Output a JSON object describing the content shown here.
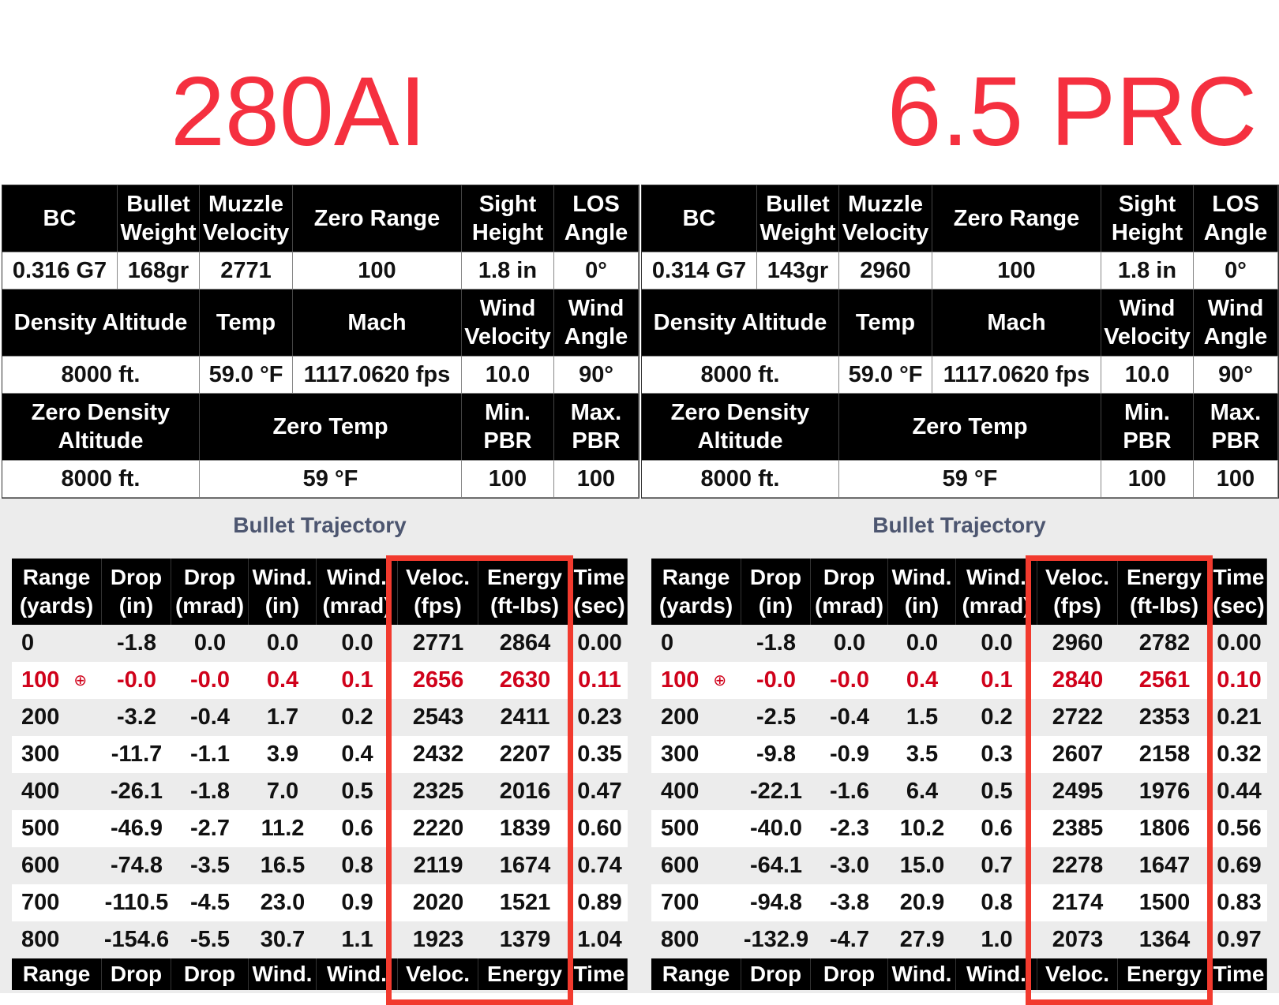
{
  "colors": {
    "title": "#f5303f",
    "highlight_box": "#f23a2e",
    "zero_row": "#d0021b"
  },
  "panels": [
    {
      "title": "280AI",
      "specs": {
        "row1_headers": [
          "BC",
          "Bullet Weight",
          "Muzzle Velocity",
          "Zero Range",
          "Sight Height",
          "LOS Angle"
        ],
        "row1_values": [
          "0.316 G7",
          "168gr",
          "2771",
          "100",
          "1.8 in",
          "0°"
        ],
        "row2_headers": [
          "Density Altitude",
          "Temp",
          "Mach",
          "Wind Velocity",
          "Wind Angle"
        ],
        "row2_values": [
          "8000 ft.",
          "59.0 °F",
          "1117.0620 fps",
          "10.0",
          "90°"
        ],
        "row3_headers": [
          "Zero Density Altitude",
          "Zero Temp",
          "Min. PBR",
          "Max. PBR"
        ],
        "row3_values": [
          "8000 ft.",
          "59 °F",
          "100",
          "100"
        ]
      },
      "trajectory_title": "Bullet Trajectory",
      "columns": [
        "Range (yards)",
        "Drop (in)",
        "Drop (mrad)",
        "Wind. (in)",
        "Wind. (mrad)",
        "Veloc. (fps)",
        "Energy (ft-lbs)",
        "Time (sec)"
      ],
      "footer_columns": [
        "Range",
        "Drop",
        "Drop",
        "Wind.",
        "Wind.",
        "Veloc.",
        "Energy",
        "Time"
      ],
      "zero_range": "100",
      "rows": [
        [
          "0",
          "-1.8",
          "0.0",
          "0.0",
          "0.0",
          "2771",
          "2864",
          "0.00"
        ],
        [
          "100",
          "-0.0",
          "-0.0",
          "0.4",
          "0.1",
          "2656",
          "2630",
          "0.11"
        ],
        [
          "200",
          "-3.2",
          "-0.4",
          "1.7",
          "0.2",
          "2543",
          "2411",
          "0.23"
        ],
        [
          "300",
          "-11.7",
          "-1.1",
          "3.9",
          "0.4",
          "2432",
          "2207",
          "0.35"
        ],
        [
          "400",
          "-26.1",
          "-1.8",
          "7.0",
          "0.5",
          "2325",
          "2016",
          "0.47"
        ],
        [
          "500",
          "-46.9",
          "-2.7",
          "11.2",
          "0.6",
          "2220",
          "1839",
          "0.60"
        ],
        [
          "600",
          "-74.8",
          "-3.5",
          "16.5",
          "0.8",
          "2119",
          "1674",
          "0.74"
        ],
        [
          "700",
          "-110.5",
          "-4.5",
          "23.0",
          "0.9",
          "2020",
          "1521",
          "0.89"
        ],
        [
          "800",
          "-154.6",
          "-5.5",
          "30.7",
          "1.1",
          "1923",
          "1379",
          "1.04"
        ]
      ]
    },
    {
      "title": "6.5 PRC",
      "specs": {
        "row1_headers": [
          "BC",
          "Bullet Weight",
          "Muzzle Velocity",
          "Zero Range",
          "Sight Height",
          "LOS Angle"
        ],
        "row1_values": [
          "0.314 G7",
          "143gr",
          "2960",
          "100",
          "1.8 in",
          "0°"
        ],
        "row2_headers": [
          "Density Altitude",
          "Temp",
          "Mach",
          "Wind Velocity",
          "Wind Angle"
        ],
        "row2_values": [
          "8000 ft.",
          "59.0 °F",
          "1117.0620 fps",
          "10.0",
          "90°"
        ],
        "row3_headers": [
          "Zero Density Altitude",
          "Zero Temp",
          "Min. PBR",
          "Max. PBR"
        ],
        "row3_values": [
          "8000 ft.",
          "59 °F",
          "100",
          "100"
        ]
      },
      "trajectory_title": "Bullet Trajectory",
      "columns": [
        "Range (yards)",
        "Drop (in)",
        "Drop (mrad)",
        "Wind. (in)",
        "Wind. (mrad)",
        "Veloc. (fps)",
        "Energy (ft-lbs)",
        "Time (sec)"
      ],
      "footer_columns": [
        "Range",
        "Drop",
        "Drop",
        "Wind.",
        "Wind.",
        "Veloc.",
        "Energy",
        "Time"
      ],
      "zero_range": "100",
      "rows": [
        [
          "0",
          "-1.8",
          "0.0",
          "0.0",
          "0.0",
          "2960",
          "2782",
          "0.00"
        ],
        [
          "100",
          "-0.0",
          "-0.0",
          "0.4",
          "0.1",
          "2840",
          "2561",
          "0.10"
        ],
        [
          "200",
          "-2.5",
          "-0.4",
          "1.5",
          "0.2",
          "2722",
          "2353",
          "0.21"
        ],
        [
          "300",
          "-9.8",
          "-0.9",
          "3.5",
          "0.3",
          "2607",
          "2158",
          "0.32"
        ],
        [
          "400",
          "-22.1",
          "-1.6",
          "6.4",
          "0.5",
          "2495",
          "1976",
          "0.44"
        ],
        [
          "500",
          "-40.0",
          "-2.3",
          "10.2",
          "0.6",
          "2385",
          "1806",
          "0.56"
        ],
        [
          "600",
          "-64.1",
          "-3.0",
          "15.0",
          "0.7",
          "2278",
          "1647",
          "0.69"
        ],
        [
          "700",
          "-94.8",
          "-3.8",
          "20.9",
          "0.8",
          "2174",
          "1500",
          "0.83"
        ],
        [
          "800",
          "-132.9",
          "-4.7",
          "27.9",
          "1.0",
          "2073",
          "1364",
          "0.97"
        ]
      ]
    }
  ]
}
